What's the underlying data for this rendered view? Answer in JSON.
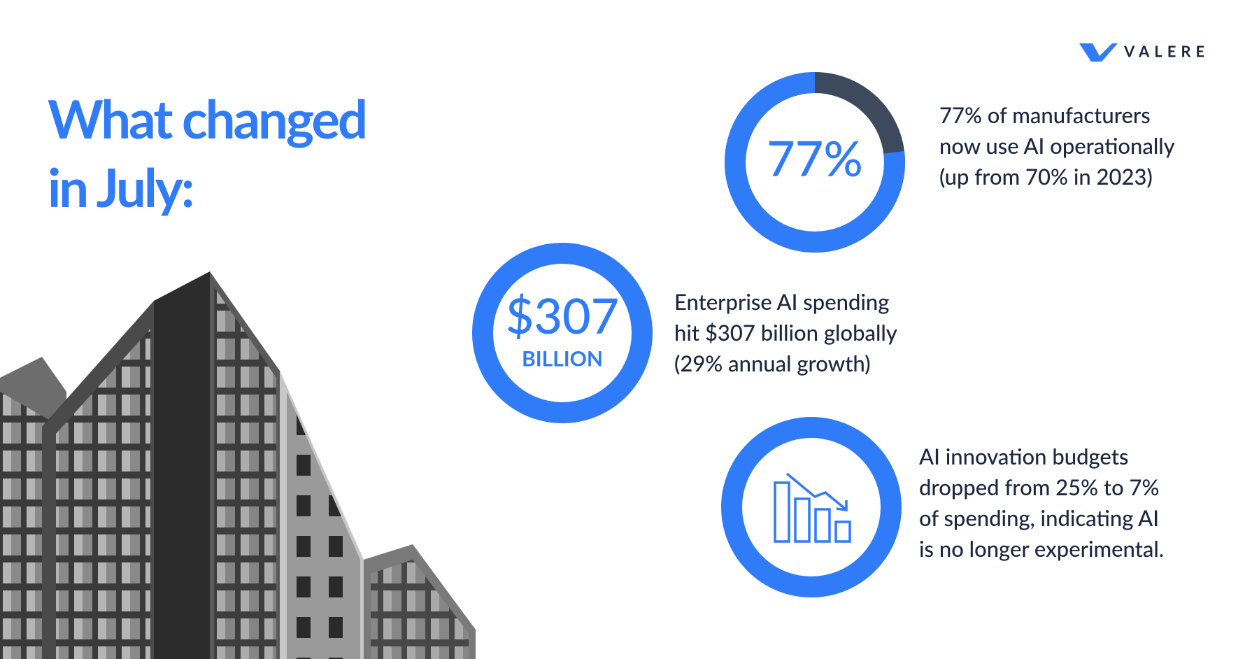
{
  "logo": {
    "text": "VALERE"
  },
  "header": {
    "title_lines": [
      "What changed",
      "in July:"
    ]
  },
  "stats": [
    {
      "value": {
        "value": 77,
        "label": "77%"
      },
      "description_lines": [
        "77% of manufacturers",
        "now use AI operationally",
        "(up from 70% in 2023)"
      ]
    },
    {
      "figure": "$307",
      "unit": "BILLION",
      "description_lines": [
        "Enterprise AI spending",
        "hit $307 billion globally",
        "(29% annual growth)"
      ]
    },
    {
      "description_lines": [
        "AI innovation budgets",
        "dropped from 25% to 7%",
        "of spending, indicating AI",
        "is no longer experimental."
      ]
    }
  ]
}
